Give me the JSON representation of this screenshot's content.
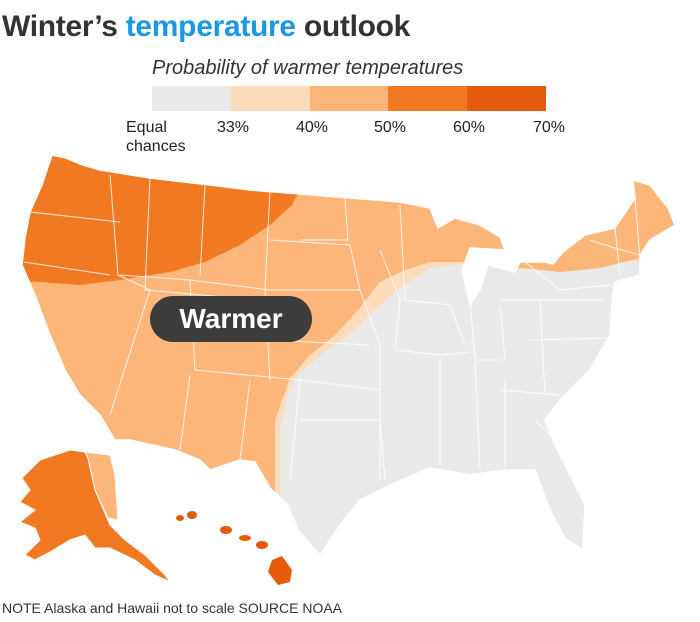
{
  "title": {
    "part1": "Winter’s ",
    "highlight": "temperature",
    "part2": " outlook"
  },
  "legend": {
    "title": "Probability of warmer temperatures",
    "items": [
      {
        "label": "Equal chances",
        "color": "#e9e9e9"
      },
      {
        "label": "33%",
        "color": "#fddcbb"
      },
      {
        "label": "40%",
        "color": "#fcb67a"
      },
      {
        "label": "50%",
        "color": "#f17921"
      },
      {
        "label": "60%",
        "color": "#e55b0c"
      },
      {
        "label": "70%"
      }
    ]
  },
  "map_label": "Warmer",
  "footnote": "NOTE Alaska and Hawaii not to scale  SOURCE NOAA"
}
